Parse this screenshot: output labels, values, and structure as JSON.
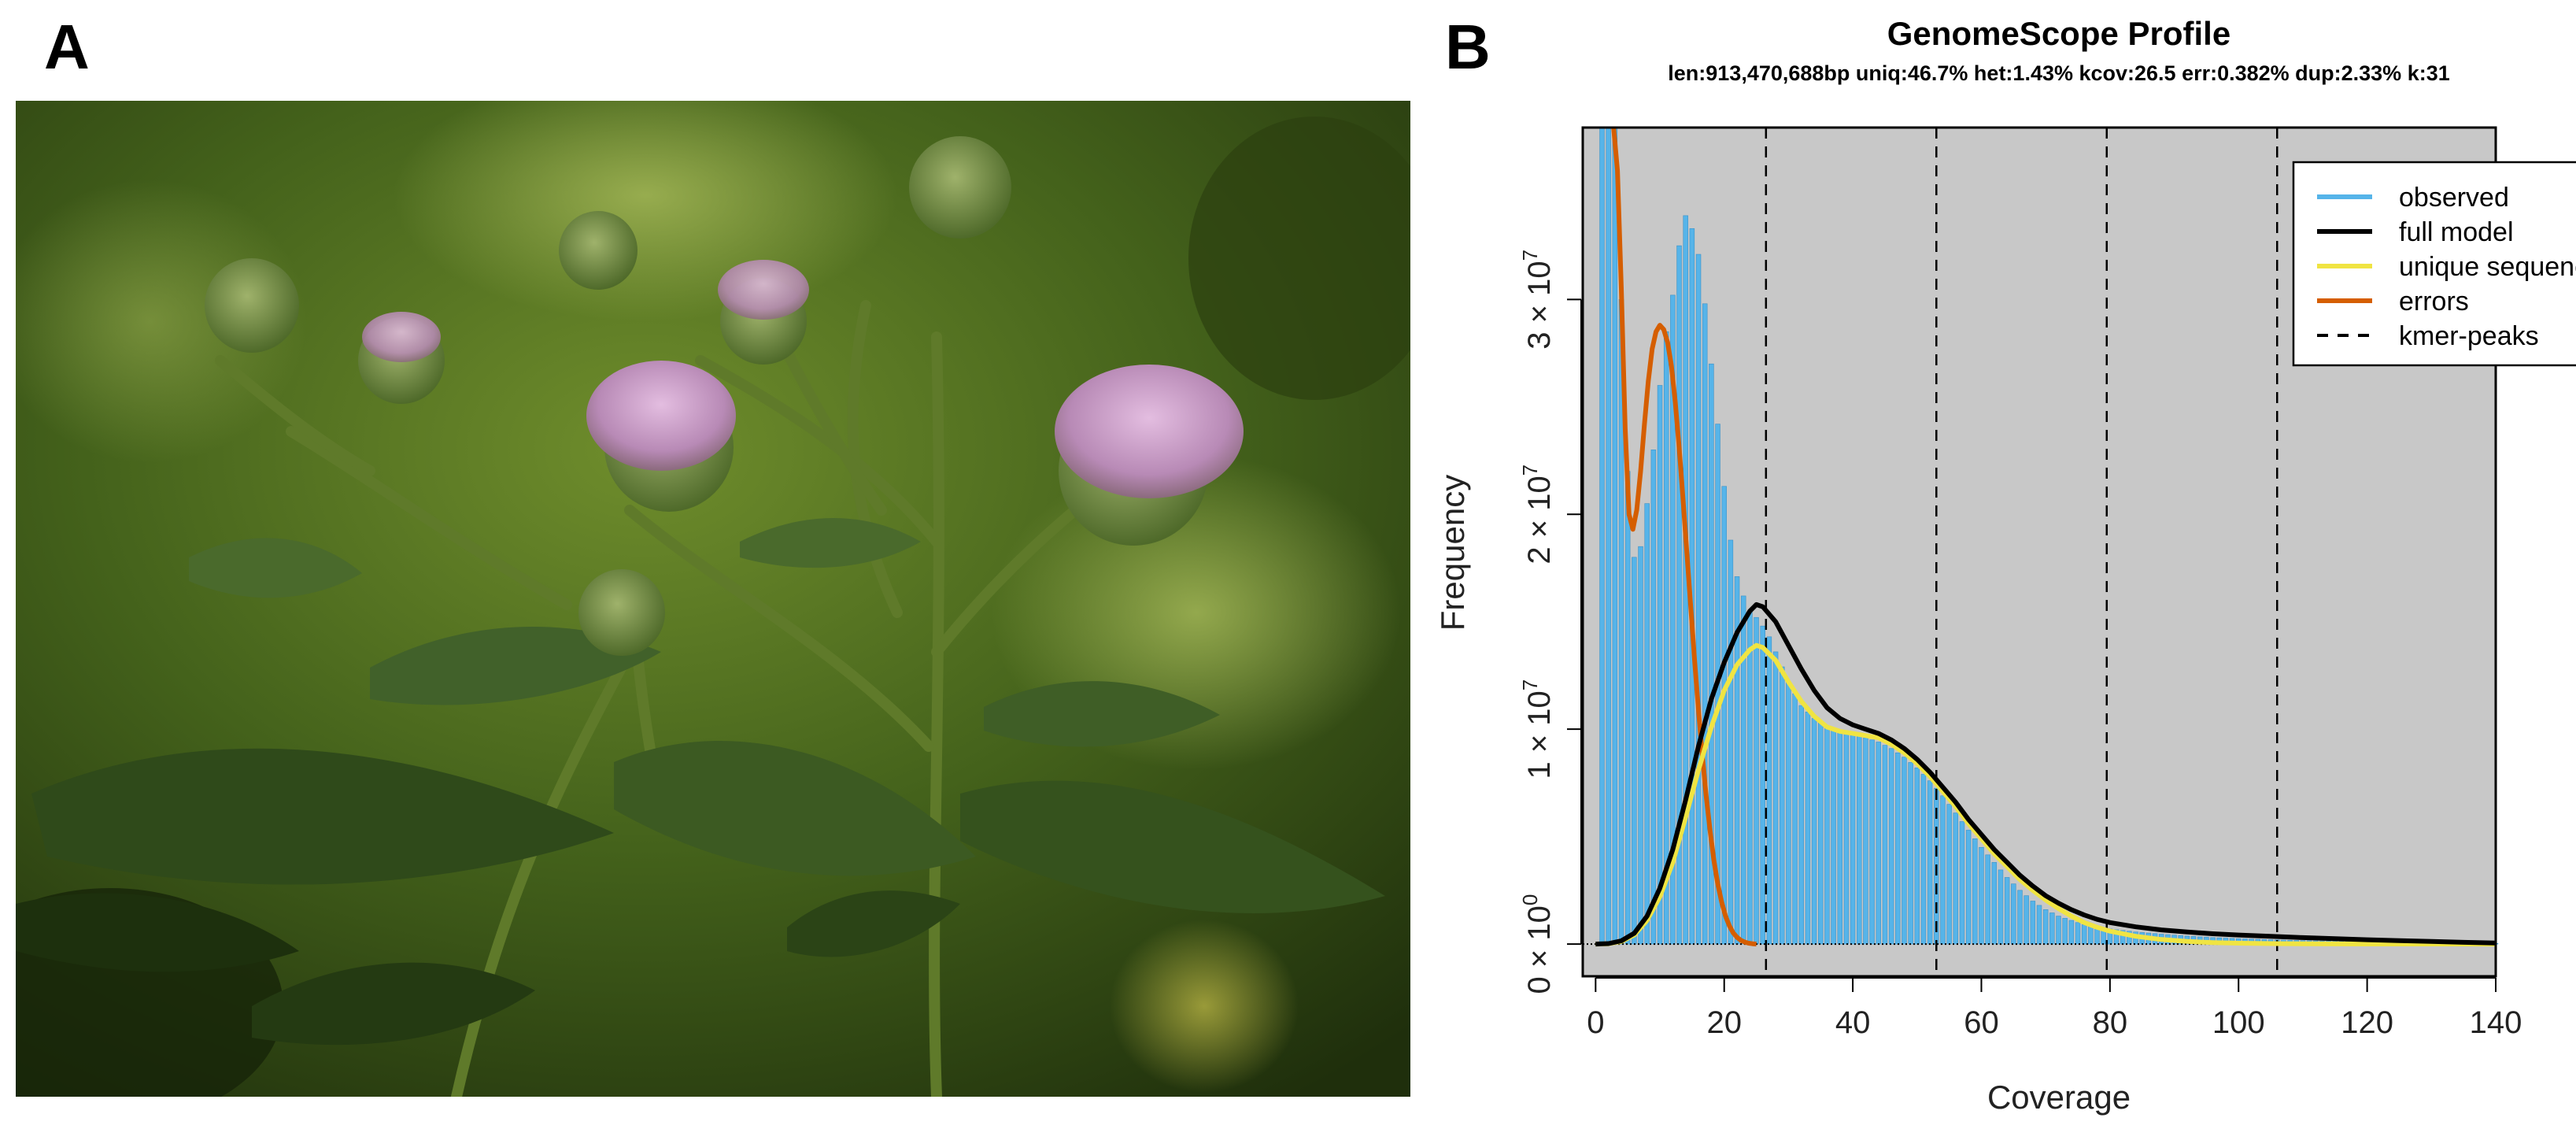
{
  "panels": {
    "a_label": "A",
    "b_label": "B"
  },
  "photo": {
    "subject": "thistle-plant-photo"
  },
  "colors": {
    "observed": "#56b4e9",
    "full_model": "#000000",
    "unique_sequence": "#f0e442",
    "errors": "#d55e00",
    "kmer_peaks": "#000000",
    "plot_bg": "#c8c8c8"
  },
  "chart_data": {
    "type": "bar",
    "title": "GenomeScope Profile",
    "subtitle": "len:913,470,688bp uniq:46.7%  het:1.43% kcov:26.5 err:0.382%  dup:2.33%  k:31",
    "xlabel": "Coverage",
    "ylabel": "Frequency",
    "xlim": [
      -2,
      140
    ],
    "ylim": [
      -1500000,
      38000000
    ],
    "x_ticks": [
      0,
      20,
      40,
      60,
      80,
      100,
      120,
      140
    ],
    "y_ticks": [
      {
        "value": 0,
        "mantissa": "0",
        "exp": "0"
      },
      {
        "value": 10000000,
        "mantissa": "1",
        "exp": "7"
      },
      {
        "value": 20000000,
        "mantissa": "2",
        "exp": "7"
      },
      {
        "value": 30000000,
        "mantissa": "3",
        "exp": "7"
      }
    ],
    "y_tick_sep": "×",
    "y_tick_base": "10",
    "kmer_peaks": [
      26.5,
      53,
      79.5,
      106
    ],
    "legend": [
      {
        "key": "observed",
        "label": "observed",
        "style": "line"
      },
      {
        "key": "full_model",
        "label": "full model",
        "style": "line"
      },
      {
        "key": "unique_sequence",
        "label": "unique sequence",
        "style": "line"
      },
      {
        "key": "errors",
        "label": "errors",
        "style": "line"
      },
      {
        "key": "kmer_peaks",
        "label": "kmer-peaks",
        "style": "dashed"
      }
    ],
    "observed": {
      "x": [
        1,
        2,
        3,
        4,
        5,
        6,
        7,
        8,
        9,
        10,
        11,
        12,
        13,
        14,
        15,
        16,
        17,
        18,
        19,
        20,
        21,
        22,
        23,
        24,
        25,
        26,
        27,
        28,
        29,
        30,
        32,
        34,
        36,
        38,
        40,
        42,
        44,
        46,
        48,
        50,
        52,
        54,
        56,
        58,
        60,
        62,
        64,
        66,
        68,
        70,
        72,
        74,
        76,
        78,
        80,
        84,
        88,
        92,
        96,
        100,
        105,
        110,
        115,
        120,
        125,
        130,
        135,
        140
      ],
      "y": [
        38000000,
        38000000,
        38000000,
        30000000,
        22000000,
        18000000,
        18500000,
        20500000,
        23000000,
        26000000,
        28500000,
        30200000,
        32500000,
        33900000,
        33300000,
        32100000,
        29800000,
        27000000,
        24200000,
        21300000,
        18800000,
        17100000,
        16200000,
        15500000,
        15200000,
        14800000,
        14300000,
        13600000,
        12900000,
        12200000,
        11100000,
        10500000,
        10100000,
        9900000,
        9800000,
        9600000,
        9400000,
        9100000,
        8700000,
        8200000,
        7600000,
        6900000,
        6100000,
        5300000,
        4500000,
        3800000,
        3100000,
        2500000,
        2000000,
        1600000,
        1300000,
        1100000,
        900000,
        780000,
        700000,
        560000,
        460000,
        370000,
        300000,
        250000,
        200000,
        160000,
        130000,
        100000,
        80000,
        60000,
        45000,
        30000
      ]
    },
    "full_model": {
      "x": [
        0,
        2,
        4,
        6,
        8,
        10,
        12,
        14,
        16,
        18,
        20,
        22,
        24,
        25,
        26,
        28,
        30,
        32,
        34,
        36,
        38,
        40,
        42,
        44,
        46,
        48,
        50,
        52,
        54,
        56,
        58,
        60,
        62,
        64,
        66,
        68,
        70,
        72,
        74,
        76,
        78,
        80,
        84,
        88,
        92,
        96,
        100,
        105,
        110,
        115,
        120,
        125,
        130,
        135,
        140
      ],
      "y": [
        0,
        20000,
        150000,
        500000,
        1300000,
        2600000,
        4400000,
        6700000,
        9200000,
        11400000,
        13100000,
        14500000,
        15500000,
        15800000,
        15700000,
        15000000,
        13900000,
        12800000,
        11800000,
        11000000,
        10500000,
        10200000,
        10000000,
        9800000,
        9500000,
        9100000,
        8600000,
        8000000,
        7300000,
        6600000,
        5800000,
        5100000,
        4400000,
        3800000,
        3200000,
        2700000,
        2250000,
        1900000,
        1600000,
        1350000,
        1150000,
        1000000,
        800000,
        660000,
        560000,
        480000,
        420000,
        360000,
        300000,
        250000,
        200000,
        160000,
        120000,
        80000,
        50000
      ]
    },
    "unique_sequence": {
      "x": [
        0,
        2,
        4,
        6,
        8,
        10,
        12,
        14,
        16,
        18,
        20,
        22,
        24,
        25,
        26,
        28,
        30,
        32,
        34,
        36,
        38,
        40,
        42,
        44,
        46,
        48,
        50,
        52,
        54,
        56,
        58,
        60,
        62,
        64,
        66,
        68,
        70,
        72,
        74,
        76,
        78,
        80,
        84,
        88,
        92,
        96,
        100,
        105,
        110,
        120,
        130,
        140
      ],
      "y": [
        0,
        15000,
        120000,
        420000,
        1100000,
        2200000,
        3800000,
        5900000,
        8100000,
        10100000,
        11800000,
        13000000,
        13700000,
        13900000,
        13800000,
        13200000,
        12200000,
        11300000,
        10600000,
        10100000,
        9900000,
        9800000,
        9700000,
        9600000,
        9300000,
        8900000,
        8400000,
        7800000,
        7100000,
        6400000,
        5600000,
        4900000,
        4200000,
        3600000,
        3000000,
        2500000,
        2050000,
        1650000,
        1300000,
        1000000,
        780000,
        600000,
        360000,
        210000,
        120000,
        70000,
        40000,
        20000,
        10000,
        3000,
        1000,
        0
      ]
    },
    "errors": {
      "x": [
        2.8,
        3.4,
        4,
        4.6,
        5.2,
        5.8,
        6.4,
        7,
        7.6,
        8.2,
        8.8,
        9.4,
        10,
        10.6,
        11.2,
        11.8,
        12.4,
        13,
        13.6,
        14.2,
        14.8,
        15.4,
        16,
        16.6,
        17.2,
        17.8,
        18.4,
        19,
        19.6,
        20.2,
        20.8,
        21.4,
        22,
        22.6,
        23.2,
        23.8,
        24.4,
        25
      ],
      "y": [
        38000000,
        36000000,
        30500000,
        24000000,
        20000000,
        19300000,
        20200000,
        22000000,
        24200000,
        26200000,
        27700000,
        28500000,
        28800000,
        28600000,
        28000000,
        26900000,
        25200000,
        23100000,
        20700000,
        18200000,
        15700000,
        13200000,
        10900000,
        8800000,
        6900000,
        5300000,
        3900000,
        2800000,
        1950000,
        1300000,
        850000,
        520000,
        310000,
        170000,
        90000,
        40000,
        15000,
        0
      ]
    }
  }
}
